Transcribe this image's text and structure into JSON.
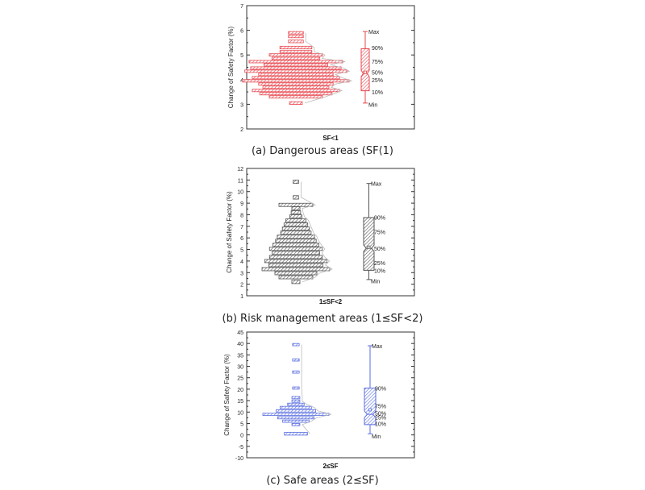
{
  "ylabel": "Change of Safety Factor (%)",
  "chart_data": [
    {
      "type": "histogram-box",
      "color": "#e8474f",
      "xlabel": "SF<1",
      "caption": "(a) Dangerous areas (SF⟨1)",
      "ylabel": "Change of Safety Factor (%)",
      "ylim": [
        2,
        7
      ],
      "yticks": [
        "2",
        "3",
        "4",
        "5",
        "6",
        "7"
      ],
      "bins": [
        {
          "y": 3.05,
          "h": 0.11,
          "w": 0.12
        },
        {
          "y": 3.3,
          "h": 0.1,
          "w": 0.5
        },
        {
          "y": 3.43,
          "h": 0.1,
          "w": 0.68
        },
        {
          "y": 3.56,
          "h": 0.1,
          "w": 0.82
        },
        {
          "y": 3.69,
          "h": 0.1,
          "w": 0.62
        },
        {
          "y": 3.82,
          "h": 0.1,
          "w": 0.7
        },
        {
          "y": 3.95,
          "h": 0.1,
          "w": 1.0
        },
        {
          "y": 4.08,
          "h": 0.1,
          "w": 0.82
        },
        {
          "y": 4.21,
          "h": 0.1,
          "w": 0.7
        },
        {
          "y": 4.34,
          "h": 0.1,
          "w": 0.96
        },
        {
          "y": 4.47,
          "h": 0.1,
          "w": 0.85
        },
        {
          "y": 4.6,
          "h": 0.1,
          "w": 0.6
        },
        {
          "y": 4.73,
          "h": 0.1,
          "w": 0.88
        },
        {
          "y": 4.86,
          "h": 0.1,
          "w": 0.45
        },
        {
          "y": 5.0,
          "h": 0.1,
          "w": 0.5
        },
        {
          "y": 5.13,
          "h": 0.1,
          "w": 0.3
        },
        {
          "y": 5.3,
          "h": 0.11,
          "w": 0.3
        },
        {
          "y": 5.55,
          "h": 0.11,
          "w": 0.14
        },
        {
          "y": 5.75,
          "h": 0.1,
          "w": 0.14
        },
        {
          "y": 5.9,
          "h": 0.1,
          "w": 0.14
        }
      ],
      "box": {
        "min": 3.05,
        "p10": 3.55,
        "p25": 3.95,
        "median": 4.25,
        "mean": 4.3,
        "p75": 4.7,
        "p90": 5.25,
        "max": 5.95
      },
      "label_positions": {
        "Max": 5.95,
        "90%": 5.3,
        "75%": 4.75,
        "50%": 4.3,
        "25%": 4.0,
        "10%": 3.5,
        "Min": 3.0
      },
      "labels": [
        "Max",
        "90%",
        "75%",
        "50%",
        "25%",
        "10%",
        "Min"
      ]
    },
    {
      "type": "histogram-box",
      "color": "#555555",
      "xlabel": "1≤SF<2",
      "caption": "(b) Risk management areas (1≤SF<2)",
      "ylabel": "Change of Safety Factor (%)",
      "ylim": [
        1,
        12
      ],
      "yticks": [
        "1",
        "2",
        "3",
        "4",
        "5",
        "6",
        "7",
        "8",
        "9",
        "10",
        "11",
        "12"
      ],
      "bins": [
        {
          "y": 2.2,
          "h": 0.3,
          "w": 0.12
        },
        {
          "y": 2.6,
          "h": 0.28,
          "w": 0.5
        },
        {
          "y": 2.95,
          "h": 0.28,
          "w": 0.62
        },
        {
          "y": 3.3,
          "h": 0.28,
          "w": 1.0
        },
        {
          "y": 3.65,
          "h": 0.28,
          "w": 0.8
        },
        {
          "y": 4.0,
          "h": 0.28,
          "w": 0.92
        },
        {
          "y": 4.35,
          "h": 0.28,
          "w": 0.78
        },
        {
          "y": 4.7,
          "h": 0.28,
          "w": 0.7
        },
        {
          "y": 5.05,
          "h": 0.28,
          "w": 0.78
        },
        {
          "y": 5.4,
          "h": 0.28,
          "w": 0.68
        },
        {
          "y": 5.75,
          "h": 0.28,
          "w": 0.6
        },
        {
          "y": 6.1,
          "h": 0.28,
          "w": 0.55
        },
        {
          "y": 6.45,
          "h": 0.28,
          "w": 0.45
        },
        {
          "y": 6.8,
          "h": 0.28,
          "w": 0.4
        },
        {
          "y": 7.15,
          "h": 0.28,
          "w": 0.35
        },
        {
          "y": 7.5,
          "h": 0.28,
          "w": 0.3
        },
        {
          "y": 7.85,
          "h": 0.28,
          "w": 0.18
        },
        {
          "y": 8.2,
          "h": 0.28,
          "w": 0.14
        },
        {
          "y": 8.55,
          "h": 0.28,
          "w": 0.12
        },
        {
          "y": 8.85,
          "h": 0.28,
          "w": 0.5
        },
        {
          "y": 9.5,
          "h": 0.3,
          "w": 0.08
        },
        {
          "y": 10.85,
          "h": 0.3,
          "w": 0.08
        }
      ],
      "box": {
        "min": 2.4,
        "p10": 3.2,
        "p25": 3.85,
        "median": 5.1,
        "mean": 5.2,
        "p75": 6.5,
        "p90": 7.75,
        "max": 10.7
      },
      "label_positions": {
        "Max": 10.7,
        "90%": 7.8,
        "75%": 6.55,
        "50%": 5.1,
        "25%": 3.85,
        "10%": 3.2,
        "Min": 2.3
      },
      "labels": [
        "Max",
        "90%",
        "75%",
        "50%",
        "25%",
        "10%",
        "Min"
      ]
    },
    {
      "type": "histogram-box",
      "color": "#5a6ee0",
      "xlabel": "2≤SF",
      "caption": "(c) Safe areas (2≤SF)",
      "ylabel": "Change of Safety Factor (%)",
      "ylim": [
        -10,
        45
      ],
      "yticks": [
        "-10",
        "-5",
        "0",
        "5",
        "10",
        "15",
        "20",
        "25",
        "30",
        "35",
        "40",
        "45"
      ],
      "bins": [
        {
          "y": 0.5,
          "h": 1.2,
          "w": 0.35
        },
        {
          "y": 4.5,
          "h": 1.0,
          "w": 0.12
        },
        {
          "y": 6.0,
          "h": 1.0,
          "w": 0.4
        },
        {
          "y": 7.5,
          "h": 1.0,
          "w": 0.55
        },
        {
          "y": 9.0,
          "h": 1.0,
          "w": 1.0
        },
        {
          "y": 10.5,
          "h": 1.0,
          "w": 0.6
        },
        {
          "y": 12.0,
          "h": 1.0,
          "w": 0.48
        },
        {
          "y": 13.4,
          "h": 1.0,
          "w": 0.25
        },
        {
          "y": 14.8,
          "h": 1.0,
          "w": 0.12
        },
        {
          "y": 16.3,
          "h": 1.0,
          "w": 0.12
        },
        {
          "y": 20.5,
          "h": 1.0,
          "w": 0.1
        },
        {
          "y": 27.5,
          "h": 1.0,
          "w": 0.1
        },
        {
          "y": 32.8,
          "h": 1.0,
          "w": 0.1
        },
        {
          "y": 39.5,
          "h": 1.0,
          "w": 0.1
        }
      ],
      "box": {
        "min": 0.5,
        "p10": 4.5,
        "p25": 6.0,
        "median": 9.0,
        "mean": 11.0,
        "p75": 13.0,
        "p90": 20.5,
        "max": 39.0
      },
      "label_positions": {
        "Max": 39.0,
        "90%": 20.5,
        "75%": 12.8,
        "50%": 9.5,
        "25%": 7.8,
        "10%": 5.0,
        "Min": -0.5
      },
      "labels": [
        "Max",
        "90%",
        "75%",
        "50%",
        "25%",
        "10%",
        "Min"
      ]
    }
  ]
}
